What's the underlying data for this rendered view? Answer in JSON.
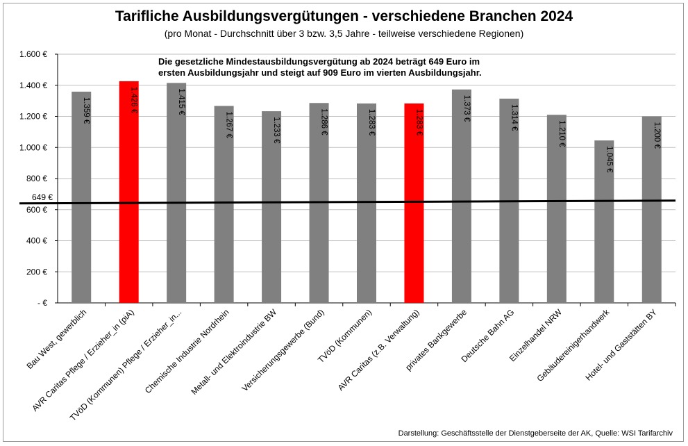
{
  "chart_data": {
    "type": "bar",
    "title": "Tarifliche Ausbildungsvergütungen - verschiedene Branchen 2024",
    "subtitle": "(pro Monat - Durchschnitt über 3 bzw. 3,5 Jahre - teilweise verschiedene Regionen)",
    "annotation_line1": "Die gesetzliche Mindestausbildungsvergütung ab 2024 beträgt 649 Euro im",
    "annotation_line2": "ersten Ausbildungsjahr und steigt auf 909 Euro im vierten Ausbildungsjahr.",
    "source": "Darstellung: Geschäftsstelle der Dienstgeberseite der AK, Quelle: WSI Tarifarchiv",
    "categories": [
      "Bau West, gewerblich",
      "AVR Caritas Pflege / Erzieher_in (piA)",
      "TVöD (Kommunen) Pflege / Erzieher_in...",
      "Chemische Industrie Nordrhein",
      "Metall- und Elektroindustrie BW",
      "Versicherungsgewerbe (Bund)",
      "TVöD (Kommunen)",
      "AVR Caritas (z.B. Verwaltung)",
      "privates Bankgewerbe",
      "Deutsche Bahn AG",
      "Einzelhandel NRW",
      "Gebäudereinigerhandwerk",
      "Hotel- und Gaststätten BY"
    ],
    "values": [
      1359,
      1426,
      1415,
      1267,
      1233,
      1286,
      1283,
      1283,
      1373,
      1314,
      1210,
      1045,
      1200
    ],
    "value_labels": [
      "1.359 €",
      "1.426 €",
      "1.415 €",
      "1.267 €",
      "1.233 €",
      "1.286 €",
      "1.283 €",
      "1.283 €",
      "1.373 €",
      "1.314 €",
      "1.210 €",
      "1.045 €",
      "1.200 €"
    ],
    "highlighted": [
      false,
      true,
      false,
      false,
      false,
      false,
      false,
      true,
      false,
      false,
      false,
      false,
      false
    ],
    "ylim": [
      0,
      1600
    ],
    "yticks": [
      0,
      200,
      400,
      600,
      800,
      1000,
      1200,
      1400,
      1600
    ],
    "ytick_labels": [
      "-  €",
      "200 €",
      "400 €",
      "600 €",
      "800 €",
      "1.000 €",
      "1.200 €",
      "1.400 €",
      "1.600 €"
    ],
    "reference_line": {
      "value": 649,
      "label": "649 €"
    },
    "grid": true,
    "colors": {
      "bar": "#808080",
      "highlight": "#ff0000",
      "grid": "#bfbfbf",
      "line": "#000000"
    }
  }
}
